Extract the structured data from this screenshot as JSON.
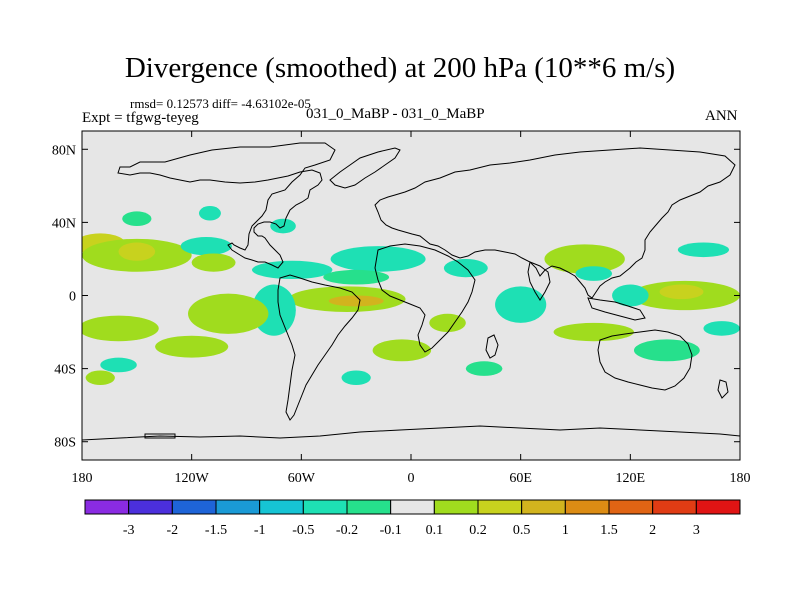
{
  "title": "Divergence (smoothed) at 200 hPa (10**6 m/s)",
  "stats": "rmsd= 0.12573 diff= -4.63102e-05",
  "expt": "Expt = tfgwg-teyeg",
  "cases": "031_0_MaBP - 031_0_MaBP",
  "season": "ANN",
  "chart_data": {
    "type": "heatmap",
    "title": "Divergence (smoothed) at 200 hPa (10**6 m/s)",
    "projection": "cylindrical equidistant",
    "background_color": "#e6e6e6",
    "x_range": [
      -180,
      180
    ],
    "y_range": [
      -90,
      90
    ],
    "x_ticks": [
      {
        "value": -180,
        "label": "180"
      },
      {
        "value": -120,
        "label": "120W"
      },
      {
        "value": -60,
        "label": "60W"
      },
      {
        "value": 0,
        "label": "0"
      },
      {
        "value": 60,
        "label": "60E"
      },
      {
        "value": 120,
        "label": "120E"
      },
      {
        "value": 180,
        "label": "180"
      }
    ],
    "y_ticks": [
      {
        "value": 80,
        "label": "80N"
      },
      {
        "value": 40,
        "label": "40N"
      },
      {
        "value": 0,
        "label": "0"
      },
      {
        "value": -40,
        "label": "40S"
      },
      {
        "value": -80,
        "label": "80S"
      }
    ],
    "colorbar": {
      "colors": [
        "#8a2be2",
        "#4b2fdc",
        "#1e64d8",
        "#1a9ad6",
        "#16c4d4",
        "#1ee0b4",
        "#26e08c",
        "#e6e6e6",
        "#a0dc1e",
        "#c8d21e",
        "#d2b41e",
        "#dc8c14",
        "#e06414",
        "#e03c14",
        "#e01414"
      ],
      "labels": [
        "-3",
        "-2",
        "-1.5",
        "-1",
        "-0.5",
        "-0.2",
        "-0.1",
        "0.1",
        "0.2",
        "0.5",
        "1",
        "1.5",
        "2",
        "3"
      ]
    },
    "regions": [
      {
        "lon": -170,
        "lat": 28,
        "rx": 14,
        "ry": 6,
        "level": 9
      },
      {
        "lon": -150,
        "lat": 22,
        "rx": 30,
        "ry": 9,
        "level": 8
      },
      {
        "lon": -150,
        "lat": 24,
        "rx": 10,
        "ry": 5,
        "level": 9
      },
      {
        "lon": -112,
        "lat": 27,
        "rx": 14,
        "ry": 5,
        "level": 5
      },
      {
        "lon": -108,
        "lat": 18,
        "rx": 12,
        "ry": 5,
        "level": 8
      },
      {
        "lon": -65,
        "lat": 14,
        "rx": 22,
        "ry": 5,
        "level": 5
      },
      {
        "lon": -18,
        "lat": 20,
        "rx": 26,
        "ry": 7,
        "level": 5
      },
      {
        "lon": -30,
        "lat": 10,
        "rx": 18,
        "ry": 4,
        "level": 6
      },
      {
        "lon": -35,
        "lat": -2,
        "rx": 32,
        "ry": 7,
        "level": 8
      },
      {
        "lon": -30,
        "lat": -3,
        "rx": 15,
        "ry": 3,
        "level": 10
      },
      {
        "lon": -75,
        "lat": -8,
        "rx": 12,
        "ry": 14,
        "level": 5
      },
      {
        "lon": -100,
        "lat": -10,
        "rx": 22,
        "ry": 11,
        "level": 8
      },
      {
        "lon": -160,
        "lat": -18,
        "rx": 22,
        "ry": 7,
        "level": 8
      },
      {
        "lon": -120,
        "lat": -28,
        "rx": 20,
        "ry": 6,
        "level": 8
      },
      {
        "lon": -170,
        "lat": -45,
        "rx": 8,
        "ry": 4,
        "level": 8
      },
      {
        "lon": -160,
        "lat": -38,
        "rx": 10,
        "ry": 4,
        "level": 5
      },
      {
        "lon": -5,
        "lat": -30,
        "rx": 16,
        "ry": 6,
        "level": 8
      },
      {
        "lon": -30,
        "lat": -45,
        "rx": 8,
        "ry": 4,
        "level": 5
      },
      {
        "lon": 20,
        "lat": -15,
        "rx": 10,
        "ry": 5,
        "level": 8
      },
      {
        "lon": 60,
        "lat": -5,
        "rx": 14,
        "ry": 10,
        "level": 5
      },
      {
        "lon": 95,
        "lat": 20,
        "rx": 22,
        "ry": 8,
        "level": 8
      },
      {
        "lon": 100,
        "lat": 12,
        "rx": 10,
        "ry": 4,
        "level": 5
      },
      {
        "lon": 150,
        "lat": 0,
        "rx": 30,
        "ry": 8,
        "level": 8
      },
      {
        "lon": 148,
        "lat": 2,
        "rx": 12,
        "ry": 4,
        "level": 9
      },
      {
        "lon": 120,
        "lat": 0,
        "rx": 10,
        "ry": 6,
        "level": 5
      },
      {
        "lon": 100,
        "lat": -20,
        "rx": 22,
        "ry": 5,
        "level": 8
      },
      {
        "lon": 140,
        "lat": -30,
        "rx": 18,
        "ry": 6,
        "level": 6
      },
      {
        "lon": 40,
        "lat": -40,
        "rx": 10,
        "ry": 4,
        "level": 6
      },
      {
        "lon": 30,
        "lat": 15,
        "rx": 12,
        "ry": 5,
        "level": 5
      },
      {
        "lon": -110,
        "lat": 45,
        "rx": 6,
        "ry": 4,
        "level": 5
      },
      {
        "lon": -70,
        "lat": 38,
        "rx": 7,
        "ry": 4,
        "level": 5
      },
      {
        "lon": -150,
        "lat": 42,
        "rx": 8,
        "ry": 4,
        "level": 6
      },
      {
        "lon": 160,
        "lat": 25,
        "rx": 14,
        "ry": 4,
        "level": 5
      },
      {
        "lon": 170,
        "lat": -18,
        "rx": 10,
        "ry": 4,
        "level": 5
      }
    ]
  }
}
